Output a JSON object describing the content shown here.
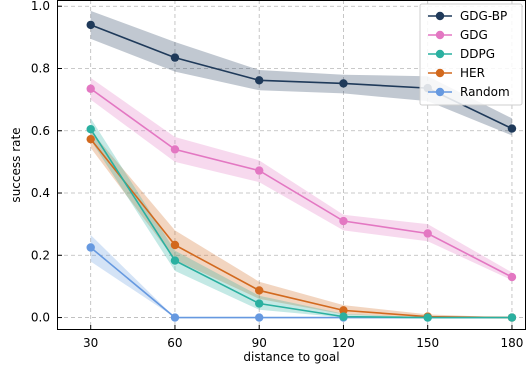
{
  "chart_data": {
    "type": "line",
    "title": "",
    "xlabel": "distance to goal",
    "ylabel": "success rate",
    "x": [
      30,
      60,
      90,
      120,
      150,
      180
    ],
    "x_ticks": [
      "30",
      "60",
      "90",
      "120",
      "150",
      "180"
    ],
    "y_ticks": [
      "0.0",
      "0.2",
      "0.4",
      "0.6",
      "0.8",
      "1.0"
    ],
    "xlim": [
      18,
      185
    ],
    "ylim": [
      -0.04,
      1.02
    ],
    "grid": true,
    "legend_position": "top-right",
    "series": [
      {
        "name": "GDG-BP",
        "color": "#1f3a5a",
        "values": [
          0.94,
          0.835,
          0.762,
          0.752,
          0.737,
          0.607
        ],
        "lower": [
          0.895,
          0.79,
          0.73,
          0.72,
          0.695,
          0.585
        ],
        "upper": [
          0.985,
          0.885,
          0.795,
          0.78,
          0.775,
          0.64
        ]
      },
      {
        "name": "GDG",
        "color": "#e377c2",
        "values": [
          0.735,
          0.54,
          0.472,
          0.31,
          0.27,
          0.13
        ],
        "lower": [
          0.7,
          0.5,
          0.435,
          0.28,
          0.245,
          0.12
        ],
        "upper": [
          0.77,
          0.58,
          0.505,
          0.33,
          0.3,
          0.145
        ]
      },
      {
        "name": "DDPG",
        "color": "#2ab0a0",
        "values": [
          0.605,
          0.183,
          0.045,
          0.003,
          0.0,
          0.0
        ],
        "lower": [
          0.57,
          0.15,
          0.025,
          0.0,
          0.0,
          0.0
        ],
        "upper": [
          0.64,
          0.215,
          0.07,
          0.012,
          0.0,
          0.0
        ]
      },
      {
        "name": "HER",
        "color": "#d2691e",
        "values": [
          0.573,
          0.233,
          0.087,
          0.023,
          0.003,
          0.0
        ],
        "lower": [
          0.545,
          0.185,
          0.06,
          0.01,
          0.0,
          0.0
        ],
        "upper": [
          0.6,
          0.28,
          0.115,
          0.04,
          0.01,
          0.0
        ]
      },
      {
        "name": "Random",
        "color": "#6699e0",
        "values": [
          0.225,
          0.0,
          0.0,
          0.0,
          0.0,
          0.0
        ],
        "lower": [
          0.18,
          0.0,
          0.0,
          0.0,
          0.0,
          0.0
        ],
        "upper": [
          0.265,
          0.0,
          0.0,
          0.0,
          0.0,
          0.0
        ]
      }
    ]
  }
}
